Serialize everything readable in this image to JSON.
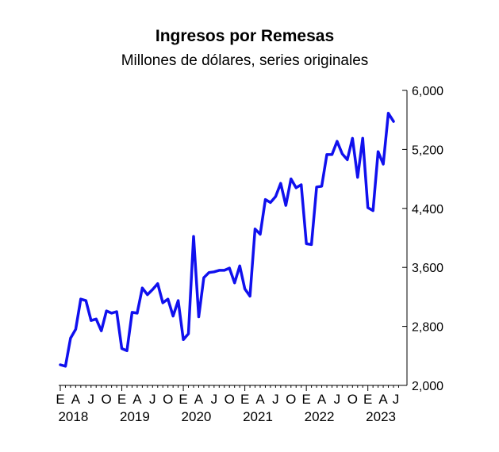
{
  "chart_data": {
    "type": "line",
    "title": "Ingresos por Remesas",
    "subtitle": "Millones de dólares, series originales",
    "xlabel": "",
    "ylabel": "",
    "ylim": [
      2000,
      6000
    ],
    "yticks": [
      2000,
      2800,
      3600,
      4400,
      5200,
      6000
    ],
    "ytick_labels": [
      "2,000",
      "2,800",
      "3,600",
      "4,400",
      "5,200",
      "6,000"
    ],
    "y_axis_side": "right",
    "grid": false,
    "x_start": "2018-01",
    "x_month_labels": [
      "E",
      "A",
      "J",
      "O"
    ],
    "x_month_positions": [
      0,
      3,
      6,
      9
    ],
    "x_year_labels": [
      "2018",
      "2019",
      "2020",
      "2021",
      "2022",
      "2023"
    ],
    "last_label": "J",
    "color": "#1010ee",
    "series": [
      {
        "values": [
          2280,
          2260,
          2640,
          2760,
          3170,
          3150,
          2880,
          2900,
          2740,
          3010,
          2980,
          3000,
          2500,
          2470,
          2990,
          2980,
          3320,
          3230,
          3300,
          3380,
          3120,
          3170,
          2940,
          3150,
          2620,
          2700,
          4020,
          2930,
          3460,
          3530,
          3540,
          3560,
          3560,
          3590,
          3390,
          3620,
          3310,
          3210,
          4120,
          4050,
          4520,
          4480,
          4560,
          4740,
          4440,
          4800,
          4680,
          4720,
          3920,
          3910,
          4690,
          4700,
          5130,
          5130,
          5310,
          5140,
          5060,
          5350,
          4820,
          5350,
          4410,
          4370,
          5170,
          5000,
          5690,
          5580
        ]
      }
    ]
  }
}
